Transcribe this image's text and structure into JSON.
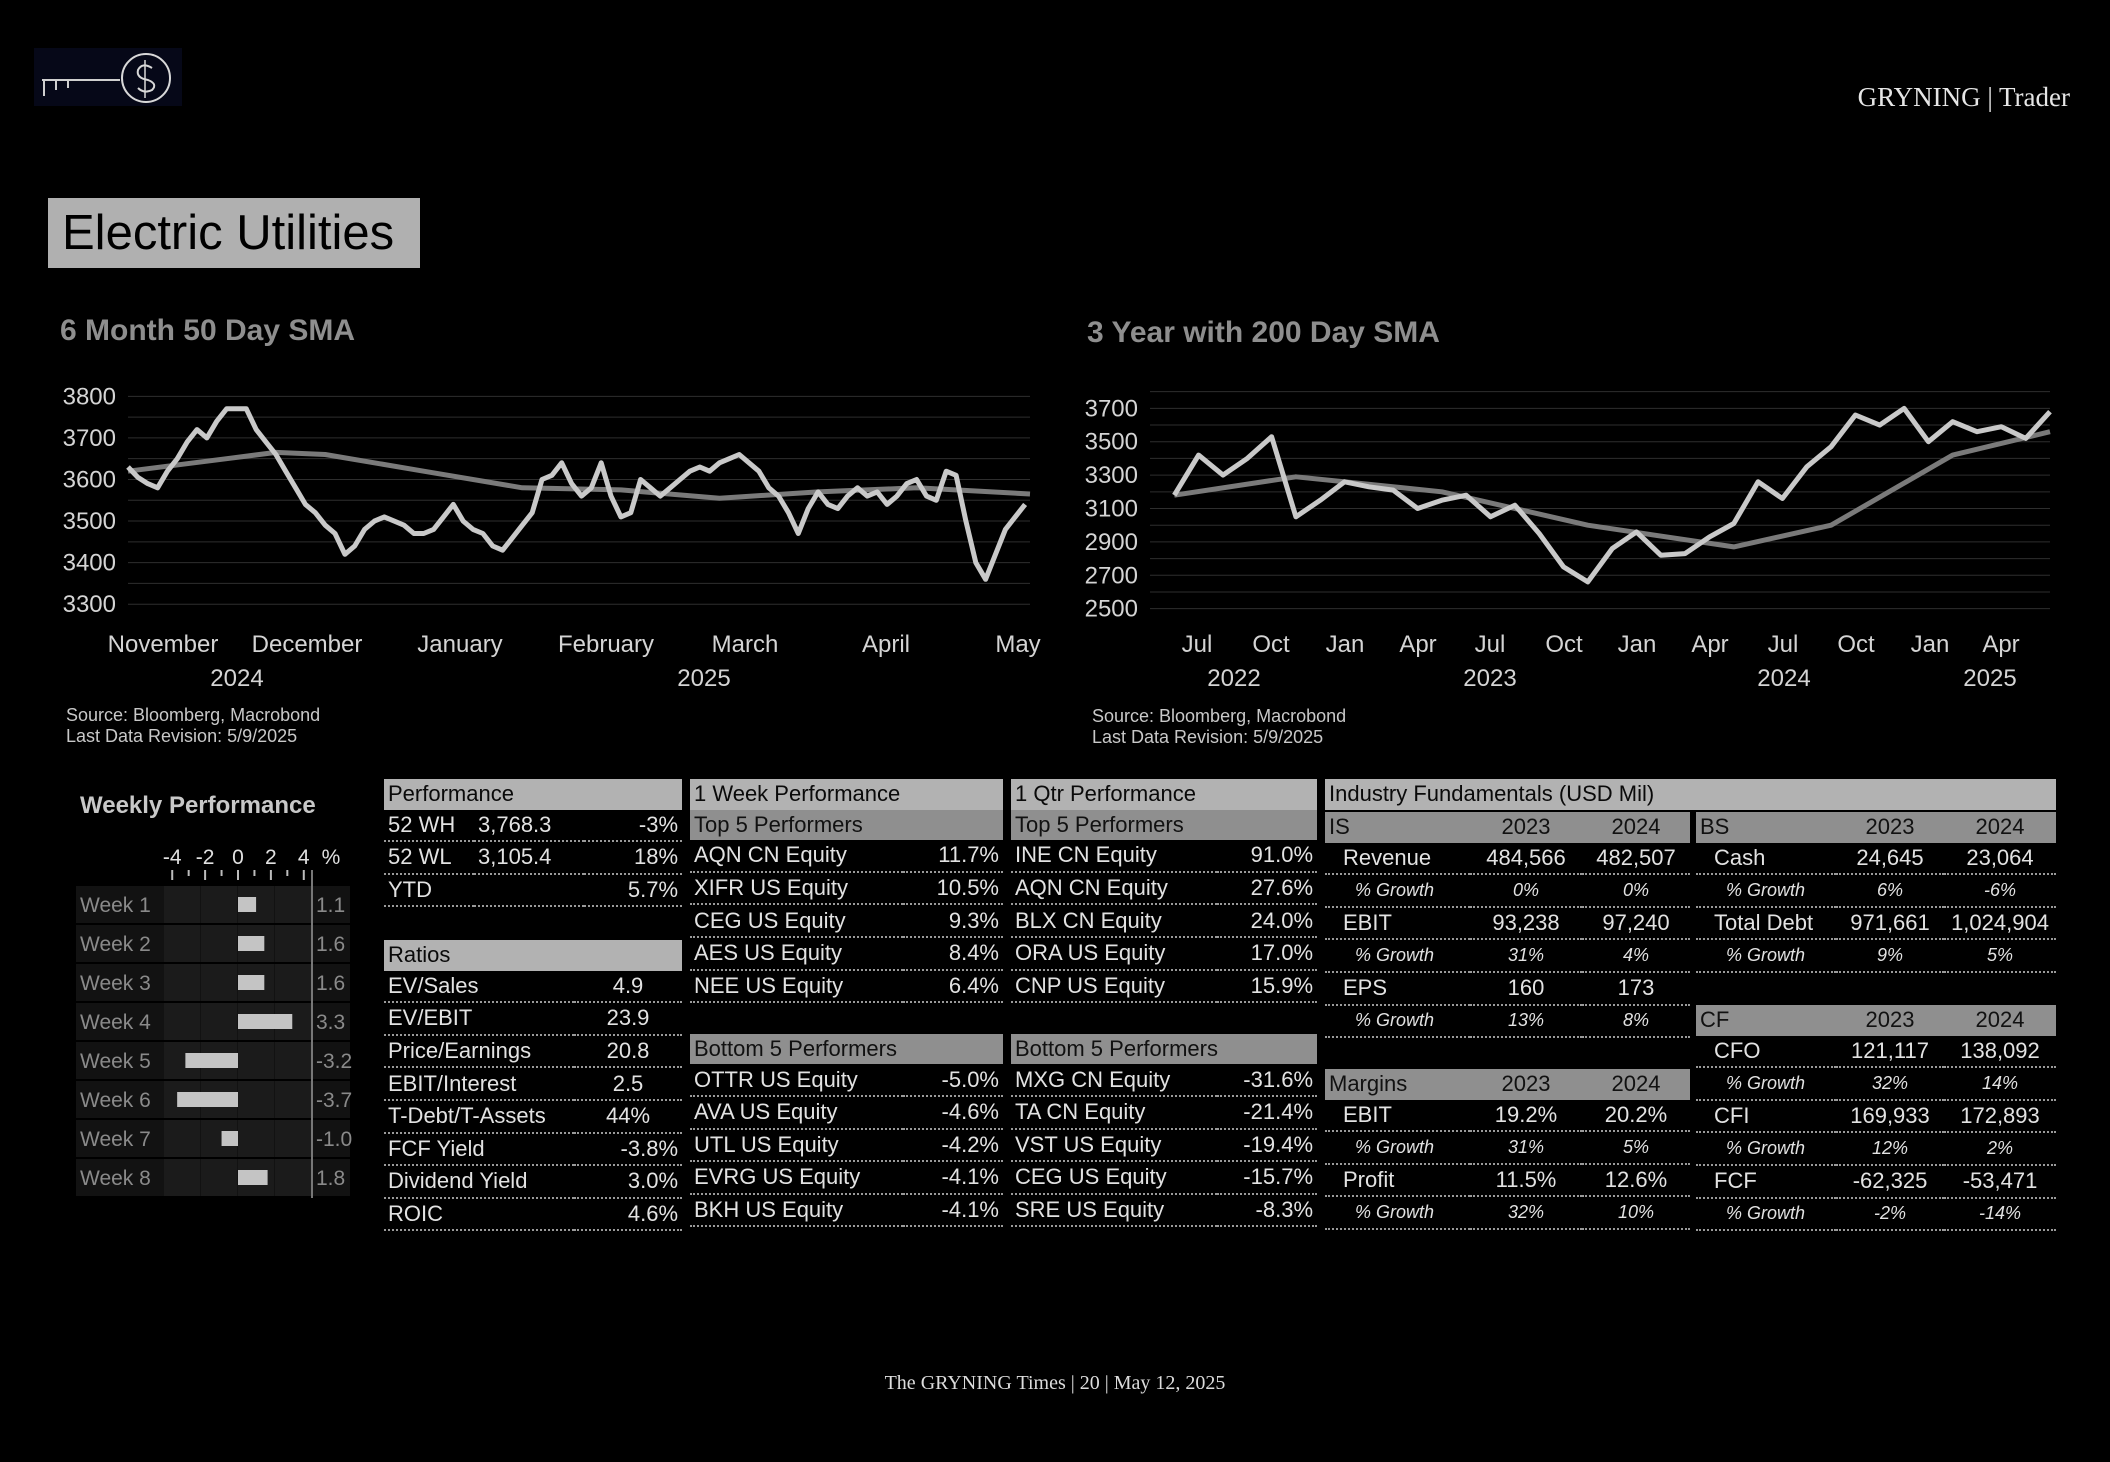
{
  "header": {
    "brand": "GRYNING | Trader"
  },
  "section_title": "Electric Utilities",
  "chart_left": {
    "title": "6 Month 50 Day SMA",
    "source_line1": "Source: Bloomberg, Macrobond",
    "source_line2": "Last Data Revision: 5/9/2025"
  },
  "chart_right": {
    "title": "3 Year with 200 Day SMA",
    "source_line1": "Source: Bloomberg, Macrobond",
    "source_line2": "Last Data Revision: 5/9/2025"
  },
  "weekly_performance": {
    "title": "Weekly Performance",
    "axis_ticks": [
      "-4",
      "-2",
      "0",
      "2",
      "4"
    ],
    "unit": "%"
  },
  "chart_data": [
    {
      "type": "line",
      "title": "6 Month 50 Day SMA",
      "x_tick_labels": [
        "November",
        "December",
        "January",
        "February",
        "March",
        "April",
        "May"
      ],
      "x_group_labels": [
        "2024",
        "2025"
      ],
      "y_ticks": [
        3300,
        3400,
        3500,
        3600,
        3700,
        3800
      ],
      "ylim": [
        3250,
        3820
      ],
      "xlim": [
        0,
        183
      ],
      "grid": true,
      "series": [
        {
          "points": [
            [
              0,
              3630
            ],
            [
              2,
              3605
            ],
            [
              4,
              3590
            ],
            [
              6,
              3580
            ],
            [
              8,
              3620
            ],
            [
              10,
              3650
            ],
            [
              12,
              3690
            ],
            [
              14,
              3720
            ],
            [
              16,
              3700
            ],
            [
              18,
              3740
            ],
            [
              20,
              3770
            ],
            [
              22,
              3770
            ],
            [
              24,
              3770
            ],
            [
              26,
              3720
            ],
            [
              28,
              3690
            ],
            [
              30,
              3660
            ],
            [
              32,
              3620
            ],
            [
              34,
              3580
            ],
            [
              36,
              3540
            ],
            [
              38,
              3520
            ],
            [
              40,
              3490
            ],
            [
              42,
              3470
            ],
            [
              44,
              3420
            ],
            [
              46,
              3440
            ],
            [
              48,
              3480
            ],
            [
              50,
              3500
            ],
            [
              52,
              3510
            ],
            [
              54,
              3500
            ],
            [
              56,
              3490
            ],
            [
              58,
              3470
            ],
            [
              60,
              3470
            ],
            [
              62,
              3480
            ],
            [
              64,
              3510
            ],
            [
              66,
              3540
            ],
            [
              68,
              3500
            ],
            [
              70,
              3480
            ],
            [
              72,
              3470
            ],
            [
              74,
              3440
            ],
            [
              76,
              3430
            ],
            [
              78,
              3460
            ],
            [
              80,
              3490
            ],
            [
              82,
              3520
            ],
            [
              84,
              3600
            ],
            [
              86,
              3610
            ],
            [
              88,
              3640
            ],
            [
              90,
              3590
            ],
            [
              92,
              3560
            ],
            [
              94,
              3580
            ],
            [
              96,
              3640
            ],
            [
              98,
              3560
            ],
            [
              100,
              3510
            ],
            [
              102,
              3520
            ],
            [
              104,
              3600
            ],
            [
              106,
              3580
            ],
            [
              108,
              3560
            ],
            [
              110,
              3580
            ],
            [
              112,
              3600
            ],
            [
              114,
              3620
            ],
            [
              116,
              3630
            ],
            [
              118,
              3620
            ],
            [
              120,
              3640
            ],
            [
              122,
              3650
            ],
            [
              124,
              3660
            ],
            [
              126,
              3640
            ],
            [
              128,
              3620
            ],
            [
              130,
              3580
            ],
            [
              132,
              3560
            ],
            [
              134,
              3520
            ],
            [
              136,
              3470
            ],
            [
              138,
              3530
            ],
            [
              140,
              3570
            ],
            [
              142,
              3540
            ],
            [
              144,
              3530
            ],
            [
              146,
              3560
            ],
            [
              148,
              3580
            ],
            [
              150,
              3560
            ],
            [
              152,
              3570
            ],
            [
              154,
              3540
            ],
            [
              156,
              3560
            ],
            [
              158,
              3590
            ],
            [
              160,
              3600
            ],
            [
              162,
              3560
            ],
            [
              164,
              3550
            ],
            [
              166,
              3620
            ],
            [
              168,
              3610
            ],
            [
              170,
              3500
            ],
            [
              172,
              3400
            ],
            [
              174,
              3360
            ],
            [
              176,
              3420
            ],
            [
              178,
              3480
            ],
            [
              180,
              3510
            ],
            [
              182,
              3540
            ]
          ]
        },
        {
          "name": "50 Day SMA",
          "points": [
            [
              0,
              3620
            ],
            [
              20,
              3650
            ],
            [
              30,
              3665
            ],
            [
              40,
              3660
            ],
            [
              60,
              3620
            ],
            [
              80,
              3580
            ],
            [
              100,
              3575
            ],
            [
              120,
              3555
            ],
            [
              140,
              3570
            ],
            [
              160,
              3580
            ],
            [
              183,
              3565
            ]
          ]
        }
      ]
    },
    {
      "type": "line",
      "title": "3 Year with 200 Day SMA",
      "x_tick_labels": [
        "Jul",
        "Oct",
        "Jan",
        "Apr",
        "Jul",
        "Oct",
        "Jan",
        "Apr",
        "Jul",
        "Oct",
        "Jan",
        "Apr"
      ],
      "x_group_labels": [
        "2022",
        "2023",
        "2024",
        "2025"
      ],
      "y_ticks": [
        2500,
        2700,
        2900,
        3100,
        3300,
        3500,
        3700
      ],
      "ylim": [
        2420,
        3810
      ],
      "grid": true,
      "series": [
        {
          "points": [
            [
              "2022-05",
              3180
            ],
            [
              "2022-06",
              3420
            ],
            [
              "2022-07",
              3300
            ],
            [
              "2022-08",
              3400
            ],
            [
              "2022-09",
              3530
            ],
            [
              "2022-10",
              3050
            ],
            [
              "2022-11",
              3150
            ],
            [
              "2022-12",
              3260
            ],
            [
              "2023-01",
              3230
            ],
            [
              "2023-02",
              3210
            ],
            [
              "2023-03",
              3100
            ],
            [
              "2023-04",
              3150
            ],
            [
              "2023-05",
              3180
            ],
            [
              "2023-06",
              3050
            ],
            [
              "2023-07",
              3120
            ],
            [
              "2023-08",
              2950
            ],
            [
              "2023-09",
              2750
            ],
            [
              "2023-10",
              2660
            ],
            [
              "2023-11",
              2860
            ],
            [
              "2023-12",
              2960
            ],
            [
              "2024-01",
              2820
            ],
            [
              "2024-02",
              2830
            ],
            [
              "2024-03",
              2930
            ],
            [
              "2024-04",
              3010
            ],
            [
              "2024-05",
              3260
            ],
            [
              "2024-06",
              3160
            ],
            [
              "2024-07",
              3350
            ],
            [
              "2024-08",
              3470
            ],
            [
              "2024-09",
              3660
            ],
            [
              "2024-10",
              3600
            ],
            [
              "2024-11",
              3700
            ],
            [
              "2024-12",
              3500
            ],
            [
              "2025-01",
              3620
            ],
            [
              "2025-02",
              3560
            ],
            [
              "2025-03",
              3590
            ],
            [
              "2025-04",
              3520
            ],
            [
              "2025-05",
              3680
            ]
          ]
        },
        {
          "name": "200 Day SMA",
          "points": [
            [
              "2022-05",
              3180
            ],
            [
              "2022-10",
              3290
            ],
            [
              "2023-04",
              3200
            ],
            [
              "2023-10",
              3000
            ],
            [
              "2024-04",
              2870
            ],
            [
              "2024-08",
              3000
            ],
            [
              "2025-01",
              3420
            ],
            [
              "2025-05",
              3560
            ]
          ]
        }
      ]
    },
    {
      "type": "bar",
      "title": "Weekly Performance",
      "orientation": "horizontal",
      "categories": [
        "Week 1",
        "Week 2",
        "Week 3",
        "Week 4",
        "Week 5",
        "Week 6",
        "Week 7",
        "Week 8"
      ],
      "values": [
        1.1,
        1.6,
        1.6,
        3.3,
        -3.2,
        -3.7,
        -1.0,
        1.8
      ],
      "value_labels": [
        "1.1",
        "1.6",
        "1.6",
        "3.3",
        "-3.2",
        "-3.7",
        "-1.0",
        "1.8"
      ],
      "xlim": [
        -4.5,
        4.5
      ]
    }
  ],
  "performance_table": {
    "header": "Performance",
    "rows": [
      [
        "52 WH",
        "3,768.3",
        "-3%"
      ],
      [
        "52 WL",
        "3,105.4",
        "18%"
      ],
      [
        "YTD",
        "",
        "5.7%"
      ]
    ]
  },
  "ratios_table": {
    "header": "Ratios",
    "rows": [
      [
        "EV/Sales",
        "4.9"
      ],
      [
        "EV/EBIT",
        "23.9"
      ],
      [
        "Price/Earnings",
        "20.8"
      ],
      [
        "EBIT/Interest",
        "2.5"
      ],
      [
        "T-Debt/T-Assets",
        "44%"
      ],
      [
        "FCF Yield",
        "-3.8%"
      ],
      [
        "Dividend Yield",
        "3.0%"
      ],
      [
        "ROIC",
        "4.6%"
      ]
    ]
  },
  "week_table": {
    "header": "1 Week Performance",
    "top_header": "Top 5 Performers",
    "top": [
      [
        "AQN CN Equity",
        "11.7%"
      ],
      [
        "XIFR US Equity",
        "10.5%"
      ],
      [
        "CEG US Equity",
        "9.3%"
      ],
      [
        "AES US Equity",
        "8.4%"
      ],
      [
        "NEE US Equity",
        "6.4%"
      ]
    ],
    "bottom_header": "Bottom 5 Performers",
    "bottom": [
      [
        "OTTR US Equity",
        "-5.0%"
      ],
      [
        "AVA US Equity",
        "-4.6%"
      ],
      [
        "UTL US Equity",
        "-4.2%"
      ],
      [
        "EVRG US Equity",
        "-4.1%"
      ],
      [
        "BKH US Equity",
        "-4.1%"
      ]
    ]
  },
  "qtr_table": {
    "header": "1 Qtr Performance",
    "top_header": "Top 5 Performers",
    "top": [
      [
        "INE CN Equity",
        "91.0%"
      ],
      [
        "AQN CN Equity",
        "27.6%"
      ],
      [
        "BLX CN Equity",
        "24.0%"
      ],
      [
        "ORA US Equity",
        "17.0%"
      ],
      [
        "CNP US Equity",
        "15.9%"
      ]
    ],
    "bottom_header": "Bottom 5 Performers",
    "bottom": [
      [
        "MXG CN Equity",
        "-31.6%"
      ],
      [
        "TA CN Equity",
        "-21.4%"
      ],
      [
        "VST US Equity",
        "-19.4%"
      ],
      [
        "CEG US Equity",
        "-15.7%"
      ],
      [
        "SRE US Equity",
        "-8.3%"
      ]
    ]
  },
  "fundamentals": {
    "header": "Industry Fundamentals (USD Mil)",
    "is": {
      "cols": [
        "IS",
        "2023",
        "2024"
      ],
      "rows": [
        [
          "Revenue",
          "484,566",
          "482,507"
        ],
        [
          "% Growth",
          "0%",
          "0%"
        ],
        [
          "EBIT",
          "93,238",
          "97,240"
        ],
        [
          "% Growth",
          "31%",
          "4%"
        ],
        [
          "EPS",
          "160",
          "173"
        ],
        [
          "% Growth",
          "13%",
          "8%"
        ]
      ]
    },
    "margins": {
      "cols": [
        "Margins",
        "2023",
        "2024"
      ],
      "rows": [
        [
          "EBIT",
          "19.2%",
          "20.2%"
        ],
        [
          "% Growth",
          "31%",
          "5%"
        ],
        [
          "Profit",
          "11.5%",
          "12.6%"
        ],
        [
          "% Growth",
          "32%",
          "10%"
        ]
      ]
    },
    "bs": {
      "cols": [
        "BS",
        "2023",
        "2024"
      ],
      "rows": [
        [
          "Cash",
          "24,645",
          "23,064"
        ],
        [
          "% Growth",
          "6%",
          "-6%"
        ],
        [
          "Total Debt",
          "971,661",
          "1,024,904"
        ],
        [
          "% Growth",
          "9%",
          "5%"
        ]
      ]
    },
    "cf": {
      "cols": [
        "CF",
        "2023",
        "2024"
      ],
      "rows": [
        [
          "CFO",
          "121,117",
          "138,092"
        ],
        [
          "% Growth",
          "32%",
          "14%"
        ],
        [
          "CFI",
          "169,933",
          "172,893"
        ],
        [
          "% Growth",
          "12%",
          "2%"
        ],
        [
          "FCF",
          "-62,325",
          "-53,471"
        ],
        [
          "% Growth",
          "-2%",
          "-14%"
        ]
      ]
    }
  },
  "footer": {
    "text": "The GRYNING Times | 20 | May 12, 2025"
  },
  "colors": {
    "background": "#000000",
    "price_line": "#c9c9c9",
    "sma_line": "#7a7a7a",
    "header_fill": "#b2b2b2",
    "subheader_fill": "#8f8f8f"
  }
}
